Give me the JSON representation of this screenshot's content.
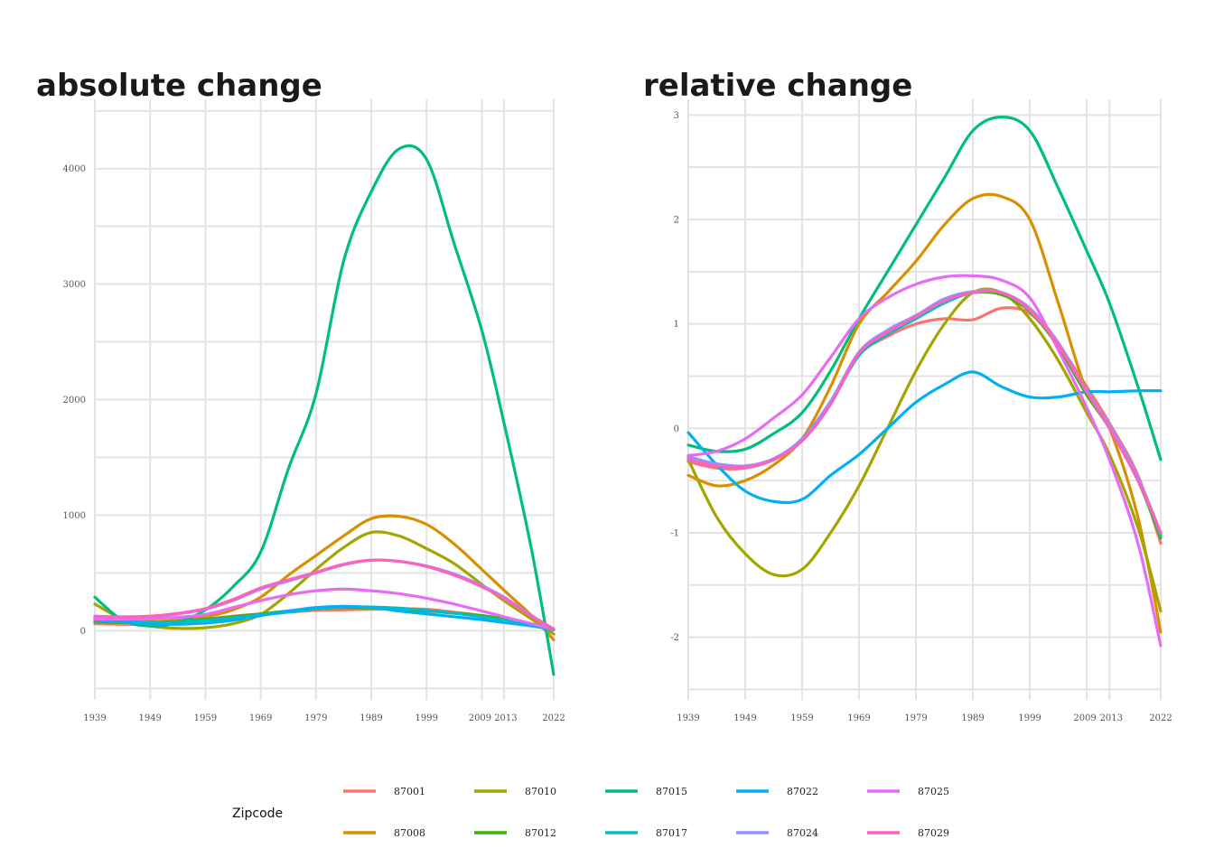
{
  "legend": {
    "title": "Zipcode",
    "entries": [
      {
        "name": "87001",
        "color": "#F8766D"
      },
      {
        "name": "87010",
        "color": "#A3A500"
      },
      {
        "name": "87015",
        "color": "#00BF7D"
      },
      {
        "name": "87022",
        "color": "#00B0F6"
      },
      {
        "name": "87025",
        "color": "#E76BF3"
      },
      {
        "name": "87008",
        "color": "#D89000"
      },
      {
        "name": "87012",
        "color": "#39B600"
      },
      {
        "name": "87017",
        "color": "#00BFC4"
      },
      {
        "name": "87024",
        "color": "#9590FF"
      },
      {
        "name": "87029",
        "color": "#FF62BC"
      }
    ]
  },
  "chart_data": [
    {
      "type": "line",
      "title": "absolute change",
      "xlabel": "",
      "ylabel": "",
      "x_ticks": [
        1939,
        1949,
        1959,
        1969,
        1979,
        1989,
        1999,
        2009,
        2013,
        2022
      ],
      "y_ticks": [
        0,
        1000,
        2000,
        3000,
        4000
      ],
      "xlim": [
        1939,
        2022
      ],
      "ylim": [
        -600,
        4600
      ],
      "grid": true,
      "legend_position": "bottom",
      "x": [
        1939,
        1944,
        1949,
        1954,
        1959,
        1964,
        1969,
        1974,
        1979,
        1984,
        1989,
        1994,
        1999,
        2004,
        2009,
        2013,
        2018,
        2022
      ],
      "series": [
        {
          "name": "87001",
          "values": [
            60,
            55,
            55,
            70,
            100,
            125,
            145,
            160,
            175,
            180,
            185,
            190,
            185,
            160,
            130,
            100,
            50,
            10
          ]
        },
        {
          "name": "87008",
          "values": [
            110,
            90,
            80,
            90,
            120,
            180,
            290,
            480,
            650,
            820,
            970,
            990,
            920,
            750,
            530,
            350,
            130,
            -80
          ]
        },
        {
          "name": "87010",
          "values": [
            230,
            100,
            40,
            20,
            25,
            60,
            140,
            320,
            530,
            720,
            850,
            820,
            710,
            580,
            400,
            260,
            100,
            -30
          ]
        },
        {
          "name": "87012",
          "values": [
            75,
            70,
            70,
            80,
            100,
            120,
            145,
            170,
            190,
            200,
            195,
            185,
            170,
            150,
            130,
            100,
            50,
            10
          ]
        },
        {
          "name": "87015",
          "values": [
            290,
            90,
            40,
            70,
            180,
            380,
            680,
            1400,
            2050,
            3200,
            3800,
            4170,
            4080,
            3350,
            2600,
            1800,
            700,
            -380
          ]
        },
        {
          "name": "87017",
          "values": [
            95,
            80,
            70,
            75,
            90,
            110,
            135,
            160,
            190,
            205,
            205,
            195,
            175,
            150,
            120,
            90,
            45,
            5
          ]
        },
        {
          "name": "87022",
          "values": [
            90,
            75,
            60,
            55,
            65,
            90,
            130,
            170,
            200,
            210,
            200,
            170,
            145,
            120,
            95,
            70,
            40,
            10
          ]
        },
        {
          "name": "87024",
          "values": [
            120,
            115,
            120,
            145,
            185,
            260,
            360,
            430,
            500,
            570,
            610,
            600,
            560,
            490,
            390,
            290,
            130,
            15
          ]
        },
        {
          "name": "87025",
          "values": [
            100,
            100,
            105,
            115,
            140,
            200,
            260,
            310,
            345,
            360,
            345,
            320,
            280,
            230,
            170,
            120,
            60,
            10
          ]
        },
        {
          "name": "87029",
          "values": [
            125,
            120,
            125,
            150,
            190,
            270,
            370,
            440,
            505,
            575,
            610,
            600,
            555,
            480,
            380,
            280,
            125,
            10
          ]
        }
      ]
    },
    {
      "type": "line",
      "title": "relative change",
      "xlabel": "",
      "ylabel": "",
      "x_ticks": [
        1939,
        1949,
        1959,
        1969,
        1979,
        1989,
        1999,
        2009,
        2013,
        2022
      ],
      "y_ticks": [
        -2,
        -1,
        0,
        1,
        2,
        3
      ],
      "xlim": [
        1939,
        2022
      ],
      "ylim": [
        -2.6,
        3.15
      ],
      "grid": true,
      "legend_position": "bottom",
      "x": [
        1939,
        1944,
        1949,
        1954,
        1959,
        1964,
        1969,
        1974,
        1979,
        1984,
        1989,
        1994,
        1999,
        2004,
        2009,
        2013,
        2018,
        2022
      ],
      "series": [
        {
          "name": "87001",
          "values": [
            -0.32,
            -0.38,
            -0.38,
            -0.3,
            -0.1,
            0.25,
            0.7,
            0.88,
            1.0,
            1.05,
            1.04,
            1.15,
            1.1,
            0.8,
            0.4,
            0.05,
            -0.45,
            -1.1
          ]
        },
        {
          "name": "87008",
          "values": [
            -0.45,
            -0.55,
            -0.5,
            -0.35,
            -0.1,
            0.4,
            1.0,
            1.3,
            1.6,
            1.95,
            2.2,
            2.22,
            2.0,
            1.2,
            0.35,
            0.0,
            -0.85,
            -1.95
          ]
        },
        {
          "name": "87010",
          "values": [
            -0.3,
            -0.85,
            -1.2,
            -1.4,
            -1.35,
            -1.0,
            -0.55,
            0.0,
            0.55,
            1.0,
            1.3,
            1.3,
            1.05,
            0.65,
            0.15,
            -0.25,
            -0.95,
            -1.75
          ]
        },
        {
          "name": "87012",
          "values": [
            -0.28,
            -0.35,
            -0.36,
            -0.3,
            -0.1,
            0.25,
            0.72,
            0.93,
            1.08,
            1.22,
            1.3,
            1.28,
            1.12,
            0.78,
            0.32,
            0.0,
            -0.5,
            -1.05
          ]
        },
        {
          "name": "87015",
          "values": [
            -0.16,
            -0.22,
            -0.2,
            -0.05,
            0.15,
            0.55,
            1.05,
            1.5,
            1.95,
            2.4,
            2.85,
            2.98,
            2.85,
            2.3,
            1.7,
            1.2,
            0.4,
            -0.3
          ]
        },
        {
          "name": "87017",
          "values": [
            -0.3,
            -0.36,
            -0.37,
            -0.3,
            -0.11,
            0.24,
            0.7,
            0.9,
            1.05,
            1.2,
            1.3,
            1.3,
            1.14,
            0.8,
            0.35,
            0.02,
            -0.48,
            -1.02
          ]
        },
        {
          "name": "87022",
          "values": [
            -0.04,
            -0.35,
            -0.6,
            -0.7,
            -0.68,
            -0.45,
            -0.25,
            0.0,
            0.25,
            0.42,
            0.54,
            0.4,
            0.3,
            0.3,
            0.35,
            0.35,
            0.36,
            0.36
          ]
        },
        {
          "name": "87024",
          "values": [
            -0.27,
            -0.34,
            -0.36,
            -0.29,
            -0.1,
            0.26,
            0.73,
            0.94,
            1.08,
            1.24,
            1.31,
            1.3,
            1.15,
            0.82,
            0.36,
            0.03,
            -0.47,
            -1.0
          ]
        },
        {
          "name": "87025",
          "values": [
            -0.26,
            -0.22,
            -0.1,
            0.1,
            0.32,
            0.68,
            1.05,
            1.25,
            1.38,
            1.45,
            1.46,
            1.42,
            1.25,
            0.75,
            0.2,
            -0.3,
            -1.1,
            -2.08
          ]
        },
        {
          "name": "87029",
          "values": [
            -0.3,
            -0.36,
            -0.37,
            -0.3,
            -0.12,
            0.23,
            0.72,
            0.92,
            1.07,
            1.22,
            1.3,
            1.3,
            1.13,
            0.8,
            0.35,
            0.0,
            -0.5,
            -1.0
          ]
        }
      ]
    }
  ]
}
